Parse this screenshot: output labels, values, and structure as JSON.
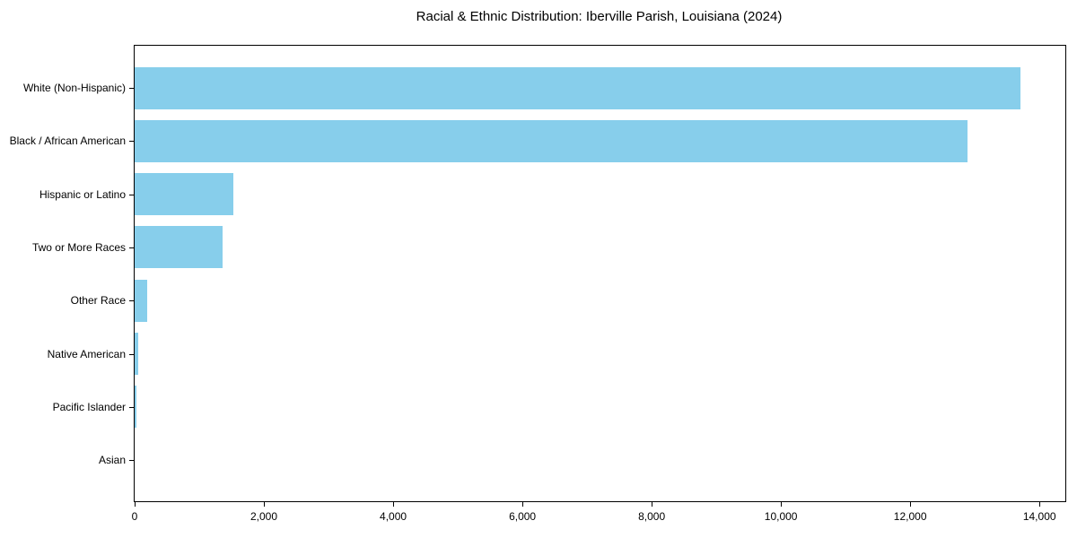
{
  "chart_data": {
    "type": "bar",
    "orientation": "horizontal",
    "title": "Racial & Ethnic Distribution: Iberville Parish, Louisiana (2024)",
    "categories": [
      "White (Non-Hispanic)",
      "Black / African American",
      "Hispanic or Latino",
      "Two or More Races",
      "Other Race",
      "Native American",
      "Pacific Islander",
      "Asian"
    ],
    "values": [
      13700,
      12880,
      1530,
      1360,
      190,
      60,
      30,
      0
    ],
    "xlabel": "",
    "ylabel": "",
    "xlim": [
      0,
      14400
    ],
    "xticks": [
      0,
      2000,
      4000,
      6000,
      8000,
      10000,
      12000,
      14000
    ],
    "xtick_labels": [
      "0",
      "2,000",
      "4,000",
      "6,000",
      "8,000",
      "10,000",
      "12,000",
      "14,000"
    ],
    "bar_color": "#87CEEB",
    "axis_color": "#000000",
    "text_color": "#000000",
    "background_color": "#ffffff",
    "grid": false,
    "legend": null
  }
}
